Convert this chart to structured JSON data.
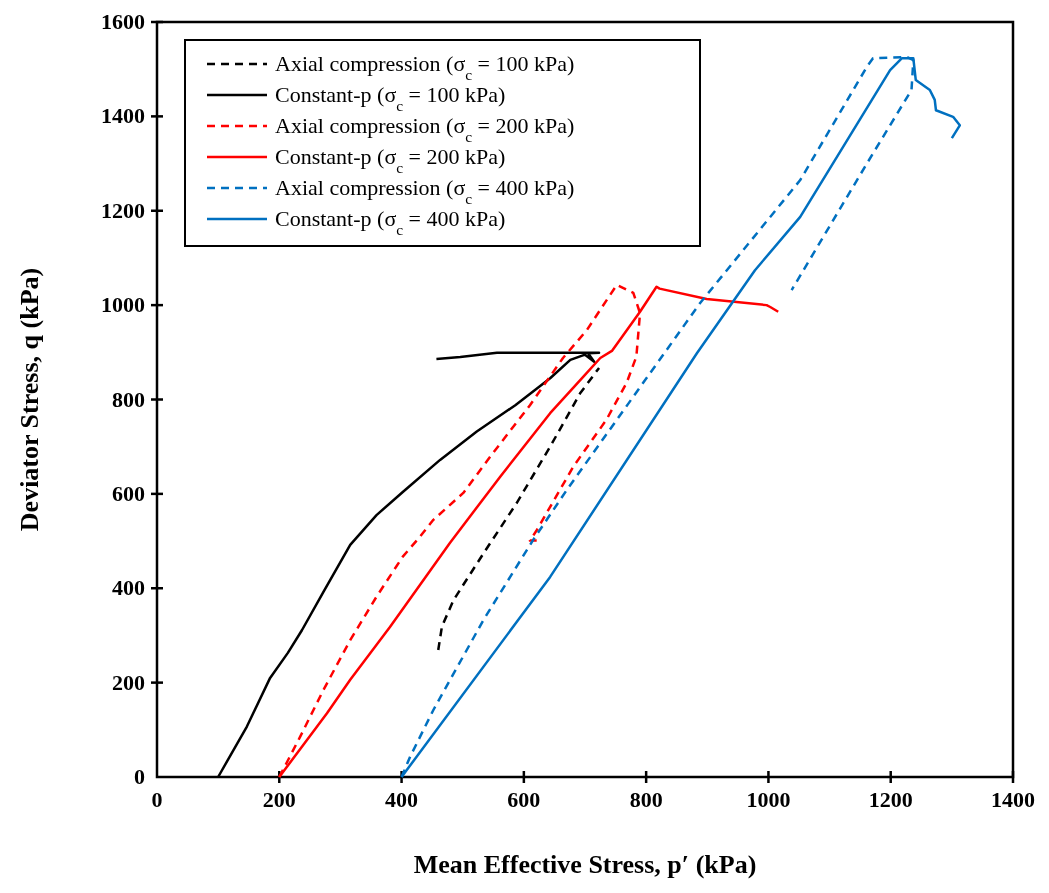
{
  "chart_data": {
    "type": "line",
    "xlabel": "Mean Effective Stress, p′ (kPa)",
    "ylabel": "Deviator Stress, q (kPa)",
    "xlim": [
      0,
      1400
    ],
    "xticks": [
      0,
      200,
      400,
      600,
      800,
      1000,
      1200,
      1400
    ],
    "ylim": [
      0,
      1600
    ],
    "yticks": [
      0,
      200,
      400,
      600,
      800,
      1000,
      1200,
      1400,
      1600
    ],
    "grid": false,
    "legend": "top left",
    "series": [
      {
        "name": "Axial compression (σ$_{c}$ = 100 kPa)",
        "color": "#000000",
        "line_style": "dashed",
        "x": [
          460,
          466,
          485,
          534,
          588,
          643,
          692,
          723
        ],
        "values": [
          269,
          319,
          375,
          474,
          580,
          700,
          813,
          867
        ]
      },
      {
        "name": "Constant-p (σ$_{c}$ = 100 kPa)",
        "color": "#000000",
        "line_style": "solid",
        "x": [
          100,
          147,
          185,
          214,
          237,
          272,
          316,
          359,
          402,
          463,
          523,
          586,
          643,
          676,
          700,
          715,
          705,
          723,
          620,
          556,
          496,
          457
        ],
        "values": [
          0,
          107,
          210,
          263,
          311,
          392,
          492,
          555,
          604,
          672,
          732,
          788,
          845,
          884,
          895,
          880,
          898,
          899,
          899,
          899,
          890,
          886
        ]
      },
      {
        "name": "Axial compression (σ$_{c}$ = 200 kPa)",
        "color": "#ff0000",
        "line_style": "dashed",
        "x": [
          200,
          234,
          272,
          316,
          359,
          402,
          430,
          452,
          501,
          545,
          610,
          664,
          703,
          752,
          779,
          790,
          784,
          768,
          735,
          681,
          621,
          610,
          621
        ],
        "values": [
          0,
          85,
          184,
          290,
          382,
          467,
          509,
          545,
          602,
          679,
          788,
          888,
          947,
          1043,
          1026,
          983,
          891,
          835,
          757,
          658,
          523,
          501,
          501
        ]
      },
      {
        "name": "Constant-p (σ$_{c}$ = 200 kPa)",
        "color": "#ff0000",
        "line_style": "solid",
        "x": [
          200,
          278,
          316,
          381,
          479,
          561,
          643,
          697,
          725,
          744,
          790,
          817,
          822,
          899,
          997,
          1003,
          1016
        ],
        "values": [
          0,
          135,
          206,
          318,
          496,
          636,
          771,
          848,
          888,
          903,
          986,
          1039,
          1035,
          1013,
          1000,
          996,
          986
        ]
      },
      {
        "name": "Axial compression (σ$_{c}$ = 400 kPa)",
        "color": "#0070c0",
        "line_style": "dashed",
        "x": [
          400,
          414,
          452,
          534,
          615,
          670,
          779,
          888,
          1052,
          1161,
          1171,
          1226,
          1237,
          1234,
          1161,
          1038
        ],
        "values": [
          0,
          43,
          142,
          333,
          502,
          608,
          806,
          1004,
          1265,
          1505,
          1523,
          1526,
          1519,
          1456,
          1300,
          1032
        ]
      },
      {
        "name": "Constant-p (σ$_{c}$ = 400 kPa)",
        "color": "#0070c0",
        "line_style": "solid",
        "x": [
          400,
          643,
          883,
          978,
          1052,
          1199,
          1218,
          1237,
          1241,
          1264,
          1272,
          1274,
          1302,
          1313,
          1300
        ],
        "values": [
          0,
          424,
          898,
          1074,
          1187,
          1498,
          1523,
          1523,
          1477,
          1456,
          1435,
          1413,
          1399,
          1381,
          1354
        ]
      }
    ]
  }
}
